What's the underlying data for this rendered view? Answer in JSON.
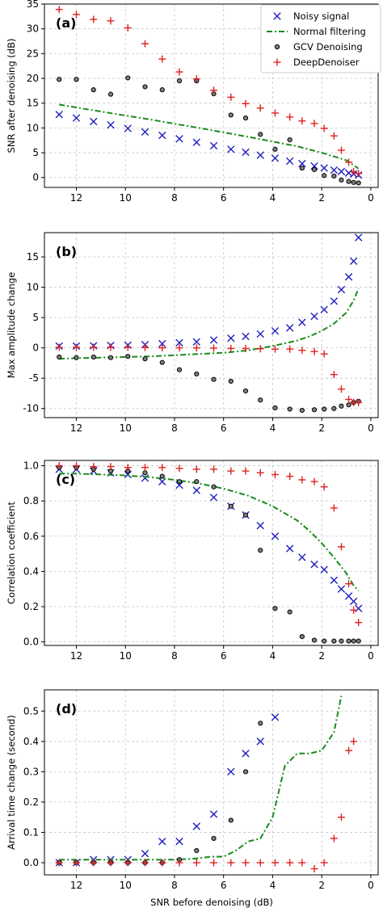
{
  "colors": {
    "noisy": "#1f1fbf",
    "normal": "#1a8a1a",
    "gcv_edge": "#000000",
    "gcv_fill": "#7f7f7f",
    "deep": "#e02020"
  },
  "legend": {
    "noisy": "Noisy signal",
    "normal": "Normal filtering",
    "gcv": "GCV Denoising",
    "deep": "DeepDenoiser"
  },
  "xlabel": "SNR before denoising (dB)",
  "chart_data": [
    {
      "type": "scatter",
      "panel_label": "(a)",
      "ylabel": "SNR after denoising (dB)",
      "xlim": [
        13.3,
        -0.3
      ],
      "ylim": [
        -2,
        35
      ],
      "xticks": [
        12,
        10,
        8,
        6,
        4,
        2,
        0
      ],
      "yticks": [
        0,
        5,
        10,
        15,
        20,
        25,
        30,
        35
      ],
      "grid": true,
      "legend_position": "top-right",
      "series": [
        {
          "name": "Noisy signal",
          "x": [
            12.7,
            12.0,
            11.3,
            10.6,
            9.9,
            9.2,
            8.5,
            7.8,
            7.1,
            6.4,
            5.7,
            5.1,
            4.5,
            3.9,
            3.3,
            2.8,
            2.3,
            1.9,
            1.5,
            1.2,
            0.9,
            0.7,
            0.5
          ],
          "y": [
            12.7,
            12.0,
            11.3,
            10.6,
            9.9,
            9.2,
            8.5,
            7.8,
            7.1,
            6.4,
            5.7,
            5.1,
            4.5,
            3.9,
            3.3,
            2.8,
            2.3,
            1.9,
            1.5,
            1.2,
            0.9,
            0.7,
            0.5
          ]
        },
        {
          "name": "Normal filtering",
          "x": [
            12.7,
            11.0,
            9.0,
            7.0,
            5.0,
            3.0,
            2.0,
            1.0,
            0.5
          ],
          "y": [
            14.7,
            13.3,
            11.7,
            10.0,
            8.2,
            6.3,
            5.0,
            3.5,
            1.8
          ]
        },
        {
          "name": "GCV Denoising",
          "x": [
            12.7,
            12.0,
            11.3,
            10.6,
            9.9,
            9.2,
            8.5,
            7.8,
            7.1,
            6.4,
            5.7,
            5.1,
            4.5,
            3.9,
            3.3,
            2.8,
            2.3,
            1.9,
            1.5,
            1.2,
            0.9,
            0.7,
            0.5
          ],
          "y": [
            19.8,
            19.8,
            17.7,
            16.8,
            20.1,
            18.3,
            17.7,
            19.5,
            19.5,
            16.9,
            12.6,
            12.0,
            8.7,
            5.7,
            7.6,
            1.9,
            1.6,
            0.4,
            0.3,
            -0.5,
            -0.8,
            -1.0,
            -1.1
          ]
        },
        {
          "name": "DeepDenoiser",
          "x": [
            12.7,
            12.0,
            11.3,
            10.6,
            9.9,
            9.2,
            8.5,
            7.8,
            7.1,
            6.4,
            5.7,
            5.1,
            4.5,
            3.9,
            3.3,
            2.8,
            2.3,
            1.9,
            1.5,
            1.2,
            0.9,
            0.7,
            0.5
          ],
          "y": [
            33.9,
            32.9,
            31.9,
            31.6,
            30.2,
            27.0,
            23.9,
            21.3,
            19.9,
            17.6,
            16.2,
            14.9,
            14.0,
            13.0,
            12.2,
            11.4,
            10.9,
            9.9,
            8.4,
            5.5,
            3.1,
            1.2,
            0.8
          ]
        }
      ]
    },
    {
      "type": "scatter",
      "panel_label": "(b)",
      "ylabel": "Max amplitude change",
      "xlim": [
        13.3,
        -0.3
      ],
      "ylim": [
        -11.5,
        19
      ],
      "xticks": [
        12,
        10,
        8,
        6,
        4,
        2,
        0
      ],
      "yticks": [
        -10,
        -5,
        0,
        5,
        10,
        15
      ],
      "grid": true,
      "series": [
        {
          "name": "Noisy signal",
          "x": [
            12.7,
            12.0,
            11.3,
            10.6,
            9.9,
            9.2,
            8.5,
            7.8,
            7.1,
            6.4,
            5.7,
            5.1,
            4.5,
            3.9,
            3.3,
            2.8,
            2.3,
            1.9,
            1.5,
            1.2,
            0.9,
            0.7,
            0.5
          ],
          "y": [
            0.3,
            0.3,
            0.35,
            0.4,
            0.45,
            0.55,
            0.7,
            0.85,
            1.0,
            1.3,
            1.6,
            1.9,
            2.3,
            2.8,
            3.3,
            4.2,
            5.2,
            6.3,
            7.7,
            9.6,
            11.7,
            14.3,
            18.2
          ]
        },
        {
          "name": "Normal filtering",
          "x": [
            12.7,
            12.0,
            11.0,
            10.0,
            9.0,
            8.0,
            7.0,
            6.0,
            5.0,
            4.0,
            3.0,
            2.5,
            2.0,
            1.5,
            1.0,
            0.7,
            0.5
          ],
          "y": [
            -1.8,
            -1.7,
            -1.6,
            -1.5,
            -1.4,
            -1.2,
            -1.0,
            -0.8,
            -0.4,
            0.3,
            1.2,
            1.9,
            2.8,
            4.0,
            5.8,
            7.8,
            9.8
          ]
        },
        {
          "name": "GCV Denoising",
          "x": [
            12.7,
            12.0,
            11.3,
            10.6,
            9.9,
            9.2,
            8.5,
            7.8,
            7.1,
            6.4,
            5.7,
            5.1,
            4.5,
            3.9,
            3.3,
            2.8,
            2.3,
            1.9,
            1.5,
            1.2,
            0.9,
            0.7,
            0.5
          ],
          "y": [
            -1.5,
            -1.6,
            -1.5,
            -1.6,
            -1.4,
            -1.8,
            -2.4,
            -3.6,
            -4.3,
            -5.2,
            -5.5,
            -7.1,
            -8.6,
            -9.9,
            -10.1,
            -10.3,
            -10.2,
            -10.1,
            -10.0,
            -9.6,
            -9.4,
            -9.0,
            -8.8
          ]
        },
        {
          "name": "DeepDenoiser",
          "x": [
            12.7,
            12.0,
            11.3,
            10.6,
            9.9,
            9.2,
            8.5,
            7.8,
            7.1,
            6.4,
            5.7,
            5.1,
            4.5,
            3.9,
            3.3,
            2.8,
            2.3,
            1.9,
            1.5,
            1.2,
            0.9,
            0.7,
            0.5
          ],
          "y": [
            0.1,
            0.1,
            0.1,
            0.1,
            0.1,
            0.05,
            0.0,
            0.0,
            0.0,
            -0.05,
            -0.1,
            -0.1,
            -0.15,
            -0.2,
            -0.2,
            -0.4,
            -0.6,
            -1.0,
            -4.4,
            -6.8,
            -8.5,
            -9.0,
            -9.0
          ]
        }
      ]
    },
    {
      "type": "scatter",
      "panel_label": "(c)",
      "ylabel": "Correlation coefficient",
      "xlim": [
        13.3,
        -0.3
      ],
      "ylim": [
        -0.02,
        1.03
      ],
      "xticks": [
        12,
        10,
        8,
        6,
        4,
        2,
        0
      ],
      "yticks": [
        0.0,
        0.2,
        0.4,
        0.6,
        0.8,
        1.0
      ],
      "grid": true,
      "series": [
        {
          "name": "Noisy signal",
          "x": [
            12.7,
            12.0,
            11.3,
            10.6,
            9.9,
            9.2,
            8.5,
            7.8,
            7.1,
            6.4,
            5.7,
            5.1,
            4.5,
            3.9,
            3.3,
            2.8,
            2.3,
            1.9,
            1.5,
            1.2,
            0.9,
            0.7,
            0.5
          ],
          "y": [
            0.98,
            0.98,
            0.97,
            0.96,
            0.95,
            0.93,
            0.91,
            0.89,
            0.86,
            0.82,
            0.77,
            0.72,
            0.66,
            0.6,
            0.53,
            0.48,
            0.44,
            0.41,
            0.35,
            0.3,
            0.26,
            0.23,
            0.19
          ]
        },
        {
          "name": "Normal filtering",
          "x": [
            12.7,
            12.0,
            11.0,
            10.0,
            9.0,
            8.0,
            7.0,
            6.0,
            5.0,
            4.0,
            3.0,
            2.5,
            2.0,
            1.5,
            1.0,
            0.7,
            0.5
          ],
          "y": [
            0.955,
            0.955,
            0.95,
            0.945,
            0.935,
            0.92,
            0.9,
            0.87,
            0.83,
            0.77,
            0.69,
            0.63,
            0.56,
            0.48,
            0.39,
            0.32,
            0.29
          ]
        },
        {
          "name": "GCV Denoising",
          "x": [
            12.7,
            12.0,
            11.3,
            10.6,
            9.9,
            9.2,
            8.5,
            7.8,
            7.1,
            6.4,
            5.7,
            5.1,
            4.5,
            3.9,
            3.3,
            2.8,
            2.3,
            1.9,
            1.5,
            1.2,
            0.9,
            0.7,
            0.5
          ],
          "y": [
            0.99,
            0.99,
            0.98,
            0.97,
            0.97,
            0.96,
            0.94,
            0.91,
            0.91,
            0.88,
            0.77,
            0.72,
            0.52,
            0.19,
            0.17,
            0.03,
            0.01,
            0.005,
            0.005,
            0.005,
            0.005,
            0.005,
            0.005
          ]
        },
        {
          "name": "DeepDenoiser",
          "x": [
            12.7,
            12.0,
            11.3,
            10.6,
            9.9,
            9.2,
            8.5,
            7.8,
            7.1,
            6.4,
            5.7,
            5.1,
            4.5,
            3.9,
            3.3,
            2.8,
            2.3,
            1.9,
            1.5,
            1.2,
            0.9,
            0.7,
            0.5
          ],
          "y": [
            1.0,
            1.0,
            0.995,
            0.995,
            0.99,
            0.99,
            0.99,
            0.985,
            0.98,
            0.98,
            0.97,
            0.97,
            0.96,
            0.95,
            0.94,
            0.92,
            0.91,
            0.88,
            0.76,
            0.54,
            0.33,
            0.18,
            0.11
          ]
        }
      ]
    },
    {
      "type": "scatter",
      "panel_label": "(d)",
      "ylabel": "Arrival time change (second)",
      "xlim": [
        13.3,
        -0.3
      ],
      "ylim": [
        -0.04,
        0.57
      ],
      "xticks": [
        12,
        10,
        8,
        6,
        4,
        2,
        0
      ],
      "yticks": [
        0.0,
        0.1,
        0.2,
        0.3,
        0.4,
        0.5
      ],
      "grid": true,
      "series": [
        {
          "name": "Noisy signal",
          "x": [
            12.7,
            12.0,
            11.3,
            10.6,
            9.9,
            9.2,
            8.5,
            7.8,
            7.1,
            6.4,
            5.7,
            5.1,
            4.5,
            3.9
          ],
          "y": [
            0.0,
            0.0,
            0.01,
            0.01,
            0.01,
            0.03,
            0.07,
            0.07,
            0.12,
            0.16,
            0.3,
            0.36,
            0.4,
            0.48
          ]
        },
        {
          "name": "Normal filtering",
          "x": [
            12.7,
            11.0,
            9.0,
            8.0,
            7.5,
            7.0,
            6.5,
            6.0,
            5.5,
            5.0,
            4.5,
            4.0,
            3.5,
            3.0,
            2.5,
            2.0,
            1.5,
            1.2
          ],
          "y": [
            0.01,
            0.01,
            0.01,
            0.01,
            0.012,
            0.015,
            0.02,
            0.02,
            0.04,
            0.07,
            0.08,
            0.15,
            0.32,
            0.36,
            0.36,
            0.37,
            0.43,
            0.55
          ]
        },
        {
          "name": "GCV Denoising",
          "x": [
            12.7,
            12.0,
            11.3,
            10.6,
            9.9,
            9.2,
            8.5,
            7.8,
            7.1,
            6.4,
            5.7,
            5.1,
            4.5
          ],
          "y": [
            0.0,
            0.0,
            0.0,
            0.0,
            0.0,
            0.0,
            0.0,
            0.01,
            0.04,
            0.08,
            0.14,
            0.3,
            0.46
          ]
        },
        {
          "name": "DeepDenoiser",
          "x": [
            12.7,
            12.0,
            11.3,
            10.6,
            9.9,
            9.2,
            8.5,
            7.8,
            7.1,
            6.4,
            5.7,
            5.1,
            4.5,
            3.9,
            3.3,
            2.8,
            2.3,
            1.9,
            1.5,
            1.2,
            0.9,
            0.7
          ],
          "y": [
            0.0,
            0.0,
            0.0,
            0.0,
            0.0,
            0.0,
            0.0,
            0.0,
            0.0,
            0.0,
            0.0,
            0.0,
            0.0,
            0.0,
            0.0,
            0.0,
            -0.02,
            0.0,
            0.08,
            0.15,
            0.37,
            0.4
          ]
        }
      ]
    }
  ]
}
